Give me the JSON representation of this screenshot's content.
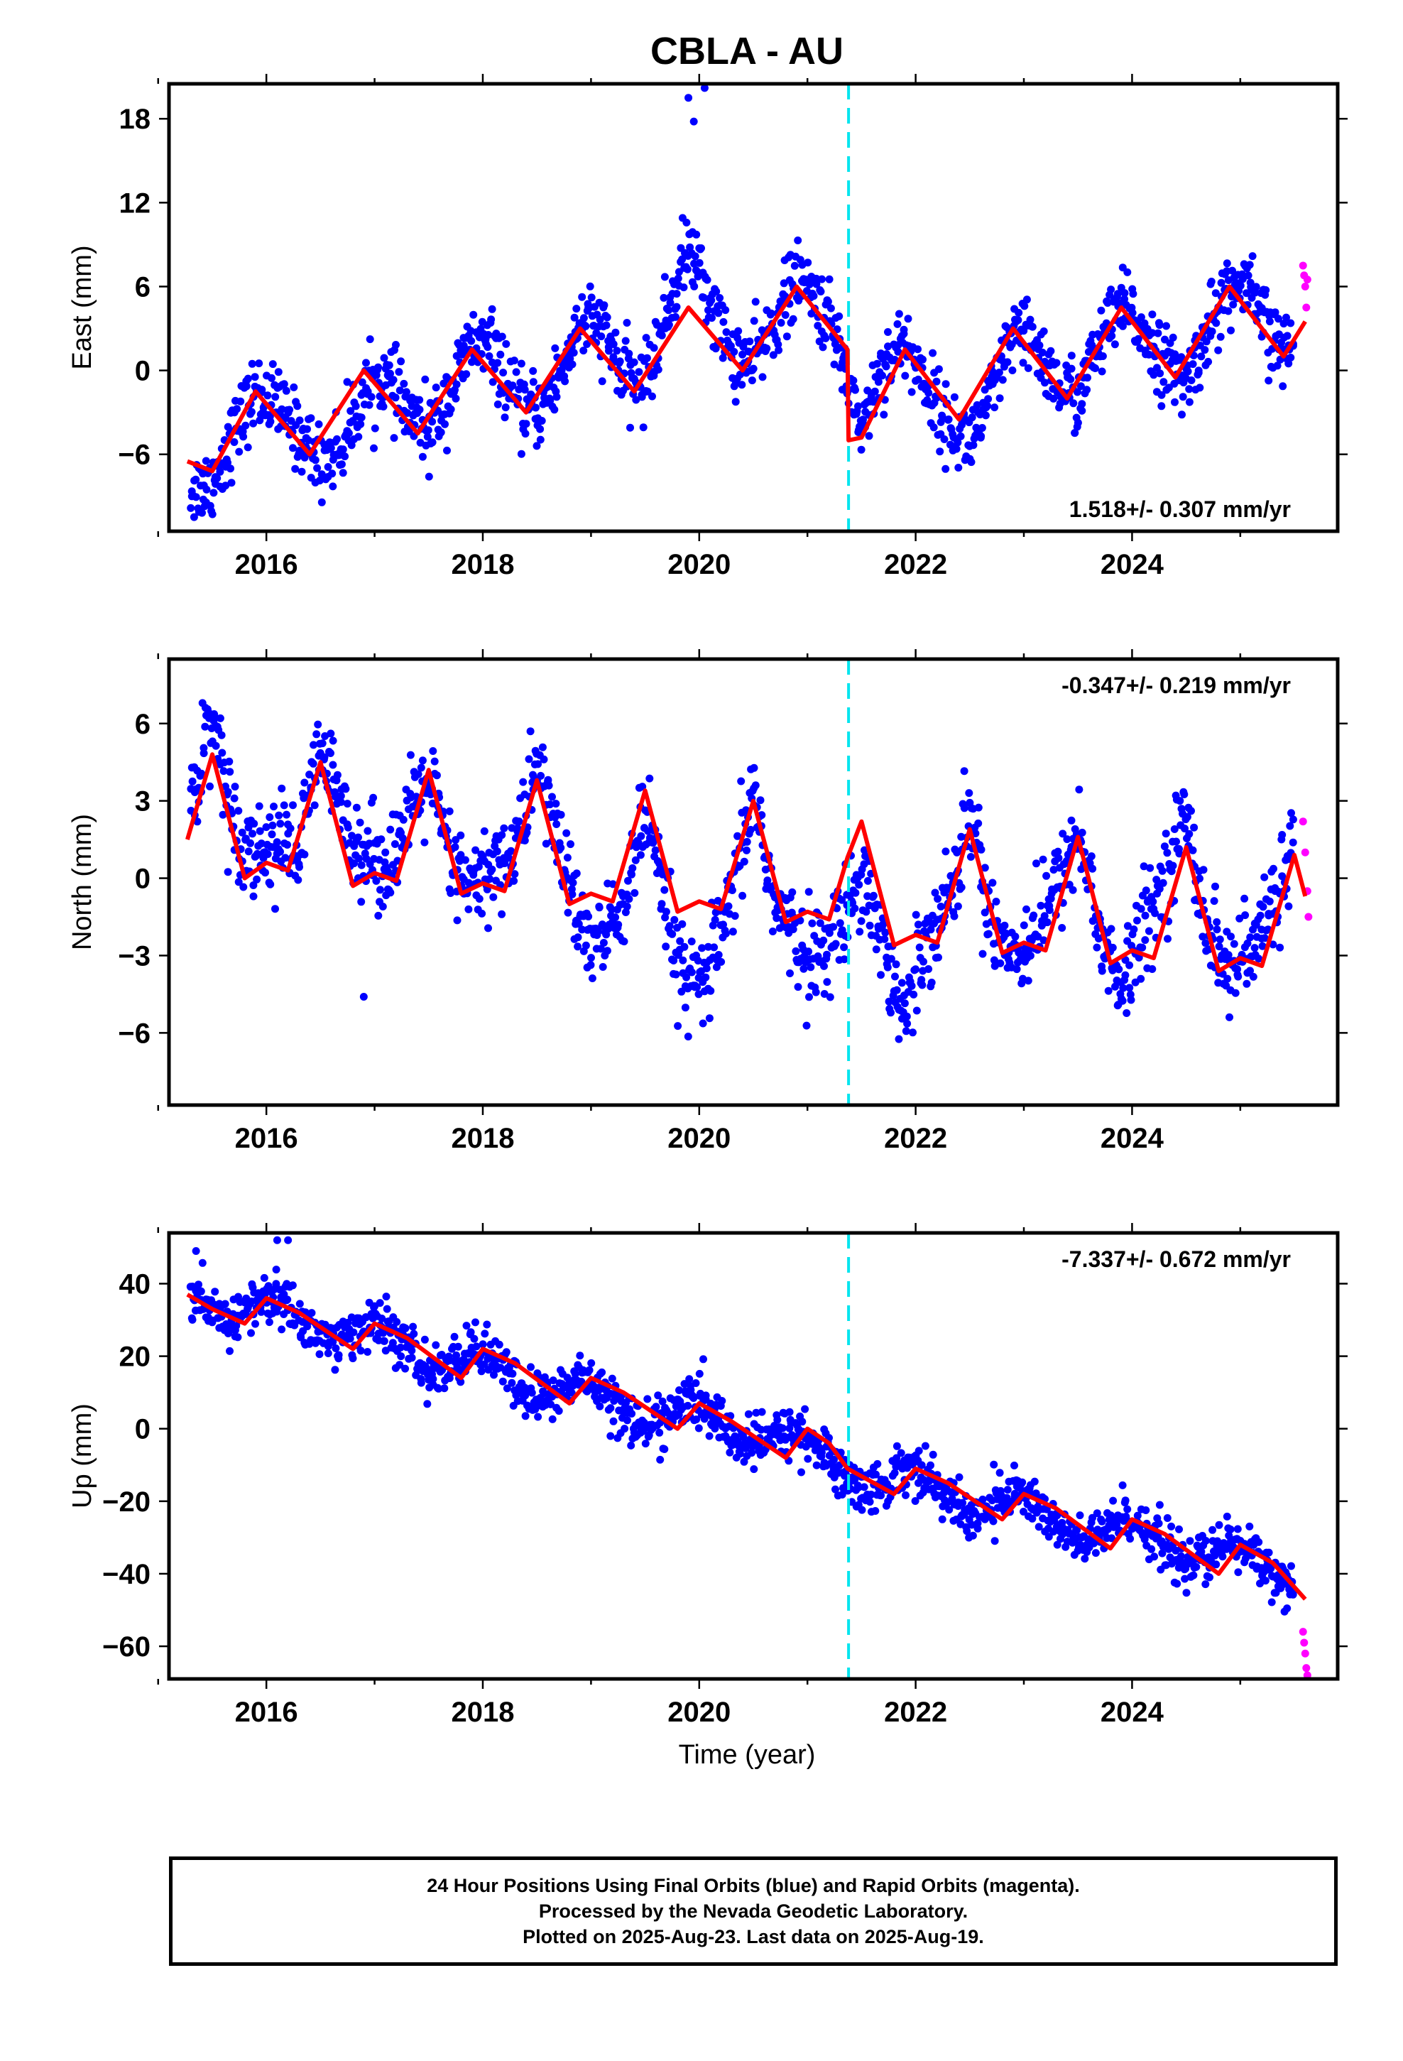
{
  "title": "CBLA - AU",
  "x_axis_label": "Time (year)",
  "x_ticks": [
    "2016",
    "2018",
    "2020",
    "2022",
    "2024"
  ],
  "footer": {
    "line1": "24 Hour Positions Using Final Orbits (blue) and Rapid Orbits (magenta).",
    "line2": "Processed by the Nevada Geodetic Laboratory.",
    "line3": "Plotted on 2025-Aug-23. Last data on 2025-Aug-19."
  },
  "colors": {
    "final_orbits": "#0000ff",
    "rapid_orbits": "#ff00ff",
    "model_fit": "#ff0000",
    "event_line": "#00e5ee"
  },
  "chart_data": [
    {
      "type": "scatter",
      "id": "east",
      "ylabel": "East (mm)",
      "rate_label": "1.518+/- 0.307 mm/yr",
      "xlim": [
        2015.1,
        2025.9
      ],
      "ylim": [
        -11.5,
        20.5
      ],
      "yticks": [
        18,
        12,
        6,
        0,
        -6
      ],
      "event_x": 2021.38,
      "series": [
        {
          "role": "final_orbits",
          "x": [
            2015.3,
            2015.5,
            2015.7,
            2015.9,
            2016.1,
            2016.3,
            2016.5,
            2016.7,
            2016.9,
            2017.1,
            2017.3,
            2017.5,
            2017.7,
            2017.9,
            2018.1,
            2018.3,
            2018.5,
            2018.7,
            2018.9,
            2019.1,
            2019.3,
            2019.5,
            2019.7,
            2019.9,
            2020.1,
            2020.3,
            2020.5,
            2020.7,
            2020.9,
            2021.1,
            2021.3,
            2021.5,
            2021.7,
            2021.9,
            2022.1,
            2022.3,
            2022.5,
            2022.7,
            2022.9,
            2023.1,
            2023.3,
            2023.5,
            2023.7,
            2023.9,
            2024.1,
            2024.3,
            2024.5,
            2024.7,
            2024.9,
            2025.1,
            2025.3,
            2025.5
          ],
          "y": [
            -8.5,
            -8.0,
            -4.5,
            -1.5,
            -2.5,
            -4.5,
            -6.5,
            -5.5,
            -1.5,
            -0.5,
            -3.0,
            -4.5,
            -1.5,
            2.0,
            1.5,
            -2.5,
            -3.0,
            -0.5,
            3.5,
            3.0,
            -0.5,
            -1.0,
            4.0,
            9.0,
            5.0,
            1.0,
            0.5,
            3.5,
            6.5,
            5.0,
            1.5,
            -4.0,
            0.5,
            2.0,
            -1.0,
            -4.0,
            -5.0,
            -2.0,
            2.5,
            2.0,
            -1.0,
            -2.0,
            2.0,
            4.5,
            3.0,
            0.5,
            -1.0,
            3.0,
            6.0,
            5.5,
            2.0,
            1.5
          ]
        },
        {
          "role": "rapid_orbits",
          "x": [
            2025.58,
            2025.59,
            2025.6,
            2025.61,
            2025.62
          ],
          "y": [
            7.5,
            6.8,
            6.0,
            4.5,
            6.5
          ]
        },
        {
          "role": "model_fit",
          "x": [
            2015.27,
            2015.5,
            2015.9,
            2016.4,
            2016.9,
            2017.4,
            2017.9,
            2018.4,
            2018.9,
            2019.4,
            2019.9,
            2020.4,
            2020.9,
            2021.37,
            2021.38,
            2021.5,
            2021.9,
            2022.4,
            2022.9,
            2023.4,
            2023.9,
            2024.4,
            2024.9,
            2025.4,
            2025.6
          ],
          "y": [
            -6.5,
            -7.2,
            -1.5,
            -6.0,
            0.0,
            -4.5,
            1.5,
            -3.0,
            3.0,
            -1.5,
            4.5,
            0.0,
            6.0,
            1.5,
            -5.0,
            -4.8,
            1.5,
            -3.5,
            3.0,
            -2.0,
            4.5,
            -0.5,
            6.0,
            1.0,
            3.5
          ]
        }
      ],
      "outliers": {
        "x": [
          2019.9,
          2019.95,
          2020.05
        ],
        "y": [
          19.5,
          17.8,
          20.2
        ]
      }
    },
    {
      "type": "scatter",
      "id": "north",
      "ylabel": "North (mm)",
      "rate_label": "-0.347+/- 0.219 mm/yr",
      "xlim": [
        2015.1,
        2025.9
      ],
      "ylim": [
        -8.8,
        8.5
      ],
      "yticks": [
        6,
        3,
        0,
        -3,
        -6
      ],
      "event_x": 2021.38,
      "series": [
        {
          "role": "final_orbits",
          "x": [
            2015.3,
            2015.5,
            2015.7,
            2015.9,
            2016.1,
            2016.3,
            2016.5,
            2016.7,
            2016.9,
            2017.1,
            2017.3,
            2017.5,
            2017.7,
            2017.9,
            2018.1,
            2018.3,
            2018.5,
            2018.7,
            2018.9,
            2019.1,
            2019.3,
            2019.5,
            2019.7,
            2019.9,
            2020.1,
            2020.3,
            2020.5,
            2020.7,
            2020.9,
            2021.1,
            2021.3,
            2021.5,
            2021.7,
            2021.9,
            2022.1,
            2022.3,
            2022.5,
            2022.7,
            2022.9,
            2023.1,
            2023.3,
            2023.5,
            2023.7,
            2023.9,
            2024.1,
            2024.3,
            2024.5,
            2024.7,
            2024.9,
            2025.1,
            2025.3,
            2025.5
          ],
          "y": [
            3.0,
            6.5,
            2.0,
            1.0,
            1.5,
            1.0,
            5.0,
            2.5,
            1.0,
            0.5,
            2.0,
            4.0,
            0.5,
            -0.5,
            0.5,
            1.0,
            4.5,
            1.5,
            -2.0,
            -2.5,
            -1.0,
            2.5,
            -1.5,
            -4.5,
            -3.5,
            -1.0,
            3.5,
            -1.0,
            -2.5,
            -3.0,
            -2.0,
            0.5,
            -2.5,
            -5.5,
            -2.0,
            -1.0,
            2.5,
            -1.5,
            -3.0,
            -2.0,
            -0.5,
            2.0,
            -2.0,
            -4.5,
            -2.0,
            0.0,
            2.5,
            -2.0,
            -3.5,
            -3.0,
            -1.0,
            1.5
          ]
        },
        {
          "role": "rapid_orbits",
          "x": [
            2025.58,
            2025.6,
            2025.62,
            2025.63
          ],
          "y": [
            2.2,
            1.0,
            -0.5,
            -1.5
          ]
        },
        {
          "role": "model_fit",
          "x": [
            2015.27,
            2015.5,
            2015.8,
            2016.0,
            2016.2,
            2016.5,
            2016.8,
            2017.0,
            2017.2,
            2017.5,
            2017.8,
            2018.0,
            2018.2,
            2018.5,
            2018.8,
            2019.0,
            2019.2,
            2019.5,
            2019.8,
            2020.0,
            2020.2,
            2020.5,
            2020.8,
            2021.0,
            2021.2,
            2021.37,
            2021.5,
            2021.8,
            2022.0,
            2022.2,
            2022.5,
            2022.8,
            2023.0,
            2023.2,
            2023.5,
            2023.8,
            2024.0,
            2024.2,
            2024.5,
            2024.8,
            2025.0,
            2025.2,
            2025.5,
            2025.6
          ],
          "y": [
            1.5,
            4.8,
            0.0,
            0.6,
            0.3,
            4.5,
            -0.3,
            0.2,
            -0.1,
            4.2,
            -0.6,
            -0.2,
            -0.5,
            3.8,
            -1.0,
            -0.6,
            -0.9,
            3.4,
            -1.3,
            -0.9,
            -1.2,
            3.0,
            -1.7,
            -1.3,
            -1.6,
            0.8,
            2.2,
            -2.6,
            -2.2,
            -2.5,
            1.9,
            -2.9,
            -2.5,
            -2.8,
            1.6,
            -3.3,
            -2.8,
            -3.1,
            1.2,
            -3.6,
            -3.1,
            -3.4,
            0.9,
            -0.7
          ]
        }
      ],
      "outliers": {
        "x": [
          2016.9
        ],
        "y": [
          -4.6
        ]
      }
    },
    {
      "type": "scatter",
      "id": "up",
      "ylabel": "Up (mm)",
      "rate_label": "-7.337+/- 0.672 mm/yr",
      "xlim": [
        2015.1,
        2025.9
      ],
      "ylim": [
        -69,
        54
      ],
      "yticks": [
        40,
        20,
        0,
        -20,
        -40,
        -60
      ],
      "event_x": 2021.38,
      "series": [
        {
          "role": "final_orbits",
          "x": [
            2015.3,
            2015.5,
            2015.7,
            2015.9,
            2016.1,
            2016.3,
            2016.5,
            2016.7,
            2016.9,
            2017.1,
            2017.3,
            2017.5,
            2017.7,
            2017.9,
            2018.1,
            2018.3,
            2018.5,
            2018.7,
            2018.9,
            2019.1,
            2019.3,
            2019.5,
            2019.7,
            2019.9,
            2020.1,
            2020.3,
            2020.5,
            2020.7,
            2020.9,
            2021.1,
            2021.3,
            2021.5,
            2021.7,
            2021.9,
            2022.1,
            2022.3,
            2022.5,
            2022.7,
            2022.9,
            2023.1,
            2023.3,
            2023.5,
            2023.7,
            2023.9,
            2024.1,
            2024.3,
            2024.5,
            2024.7,
            2024.9,
            2025.1,
            2025.3,
            2025.5
          ],
          "y": [
            36,
            31,
            30,
            35,
            36,
            31,
            25,
            24,
            29,
            28,
            22,
            15,
            17,
            22,
            20,
            12,
            8,
            10,
            14,
            12,
            4,
            0,
            3,
            8,
            5,
            -2,
            -5,
            -2,
            0,
            -5,
            -12,
            -17,
            -16,
            -10,
            -12,
            -20,
            -24,
            -22,
            -17,
            -20,
            -27,
            -32,
            -30,
            -24,
            -26,
            -33,
            -37,
            -36,
            -31,
            -34,
            -40,
            -44
          ]
        },
        {
          "role": "rapid_orbits",
          "x": [
            2025.58,
            2025.59,
            2025.6,
            2025.61,
            2025.62
          ],
          "y": [
            -56,
            -59,
            -62,
            -66,
            -68
          ]
        },
        {
          "role": "model_fit",
          "x": [
            2015.27,
            2015.5,
            2015.8,
            2016.0,
            2016.3,
            2016.8,
            2017.0,
            2017.3,
            2017.8,
            2018.0,
            2018.3,
            2018.8,
            2019.0,
            2019.3,
            2019.8,
            2020.0,
            2020.3,
            2020.8,
            2021.0,
            2021.2,
            2021.37,
            2021.8,
            2022.0,
            2022.3,
            2022.8,
            2023.0,
            2023.3,
            2023.8,
            2024.0,
            2024.3,
            2024.8,
            2025.0,
            2025.3,
            2025.6
          ],
          "y": [
            37,
            33,
            29,
            36,
            32,
            22,
            29,
            25,
            14,
            22,
            18,
            7,
            14,
            10,
            0,
            7,
            2,
            -8,
            0,
            -4,
            -11,
            -18,
            -11,
            -15,
            -25,
            -18,
            -22,
            -33,
            -25,
            -29,
            -40,
            -32,
            -37,
            -47
          ]
        }
      ],
      "outliers": {
        "x": [
          2015.35,
          2016.1,
          2016.2
        ],
        "y": [
          49,
          52,
          52
        ]
      }
    }
  ]
}
